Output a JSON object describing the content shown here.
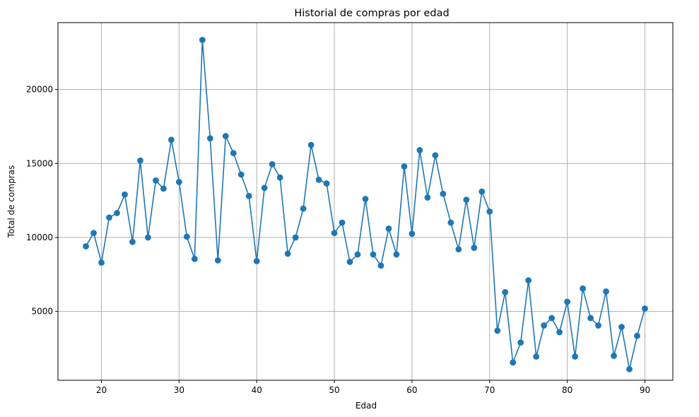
{
  "colors": {
    "series": "#1f77b4",
    "grid": "#b0b0b0",
    "axis": "#000000",
    "background": "#ffffff"
  },
  "chart_data": {
    "type": "line",
    "title": "Historial de compras por edad",
    "xlabel": "Edad",
    "ylabel": "Total de compras",
    "xlim": [
      14.4,
      93.6
    ],
    "ylim": [
      350,
      24520
    ],
    "xticks": [
      20,
      30,
      40,
      50,
      60,
      70,
      80,
      90
    ],
    "yticks": [
      5000,
      10000,
      15000,
      20000
    ],
    "grid": true,
    "marker": "circle",
    "series": [
      {
        "x": [
          18,
          19,
          20,
          21,
          22,
          23,
          24,
          25,
          26,
          27,
          28,
          29,
          30,
          31,
          32,
          33,
          34,
          35,
          36,
          37,
          38,
          39,
          40,
          41,
          42,
          43,
          44,
          45,
          46,
          47,
          48,
          49,
          50,
          51,
          52,
          53,
          54,
          55,
          56,
          57,
          58,
          59,
          60,
          61,
          62,
          63,
          64,
          65,
          66,
          67,
          68,
          69,
          70,
          71,
          72,
          73,
          74,
          75,
          76,
          77,
          78,
          79,
          80,
          81,
          82,
          83,
          84,
          85,
          86,
          87,
          88,
          89,
          90
        ],
        "y": [
          9400,
          10300,
          8300,
          11350,
          11650,
          12900,
          9700,
          15200,
          10000,
          13850,
          13300,
          16600,
          13750,
          10050,
          8550,
          23350,
          16700,
          8450,
          16850,
          15700,
          14250,
          12800,
          8400,
          13350,
          14950,
          14050,
          8900,
          10000,
          11950,
          16250,
          13900,
          13650,
          10300,
          11000,
          8350,
          8850,
          12600,
          8850,
          8100,
          10600,
          8850,
          14800,
          10250,
          15900,
          12700,
          15550,
          12950,
          11000,
          9200,
          12550,
          9300,
          13100,
          11750,
          3700,
          6300,
          1550,
          2900,
          7100,
          1950,
          4050,
          4550,
          3600,
          5650,
          1950,
          6550,
          4550,
          4050,
          6350,
          2000,
          3950,
          1100,
          3350,
          5200
        ]
      }
    ]
  }
}
